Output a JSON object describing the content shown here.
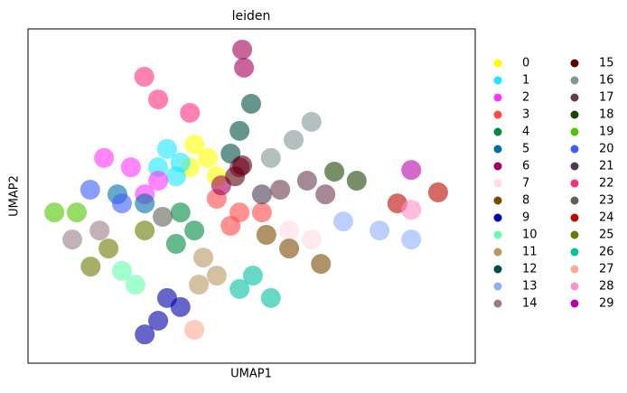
{
  "chart_data": {
    "type": "scatter",
    "title": "leiden",
    "xlabel": "UMAP1",
    "ylabel": "UMAP2",
    "xlim": [
      0,
      100
    ],
    "ylim": [
      0,
      100
    ],
    "legend": "outside-right",
    "series": [
      {
        "name": "0",
        "color": "#FFFF00",
        "x": [
          37.2,
          40.2,
          42.2,
          36.2
        ],
        "y": [
          65.4,
          61.4,
          55.9,
          58.6
        ]
      },
      {
        "name": "1",
        "color": "#1CE6FF",
        "x": [
          31.1,
          34.1,
          29.1,
          33.1
        ],
        "y": [
          64.1,
          60,
          58.6,
          55.9
        ]
      },
      {
        "name": "2",
        "color": "#FF34FF",
        "x": [
          17,
          23,
          29.1,
          26.1
        ],
        "y": [
          61.4,
          58.6,
          54.6,
          50.5
        ]
      },
      {
        "name": "3",
        "color": "#FF4A46",
        "x": [
          42.2,
          47.3,
          52.3,
          45.3
        ],
        "y": [
          49.2,
          45.1,
          45.1,
          41.1
        ]
      },
      {
        "name": "4",
        "color": "#008941",
        "x": [
          34.1,
          37.2,
          33.1
        ],
        "y": [
          45.1,
          39.7,
          35.7
        ]
      },
      {
        "name": "5",
        "color": "#006FA6",
        "x": [
          20,
          26.1
        ],
        "y": [
          50.5,
          47.8
        ]
      },
      {
        "name": "6",
        "color": "#A30059",
        "x": [
          47.9,
          48.3,
          47.3,
          43.2
        ],
        "y": [
          93.8,
          88.4,
          58.6,
          53.2
        ]
      },
      {
        "name": "7",
        "color": "#FFDBE5",
        "x": [
          58.4,
          63.4
        ],
        "y": [
          39.7,
          37
        ]
      },
      {
        "name": "8",
        "color": "#7A4900",
        "x": [
          53.3,
          58.4,
          65.5
        ],
        "y": [
          38.4,
          34.3,
          29.7
        ]
      },
      {
        "name": "9",
        "color": "#0000A6",
        "x": [
          31.1,
          29.1,
          34.1,
          26.1
        ],
        "y": [
          19.5,
          12.7,
          16.8,
          8.6
        ]
      },
      {
        "name": "10",
        "color": "#63FFAC",
        "x": [
          21,
          24
        ],
        "y": [
          27.6,
          23.5
        ]
      },
      {
        "name": "11",
        "color": "#B79762",
        "x": [
          39.2,
          42.2,
          38.2
        ],
        "y": [
          31.6,
          26.2,
          23.5
        ]
      },
      {
        "name": "12",
        "color": "#004D43",
        "x": [
          47.3,
          49.9,
          45.3
        ],
        "y": [
          69.5,
          77.6,
          62.7
        ]
      },
      {
        "name": "13",
        "color": "#8FB0FF",
        "x": [
          70.5,
          78.6,
          85.7
        ],
        "y": [
          42.4,
          39.7,
          37
        ]
      },
      {
        "name": "14",
        "color": "#997D87",
        "x": [
          9.9,
          16
        ],
        "y": [
          37,
          39.7
        ]
      },
      {
        "name": "15",
        "color": "#5A0007",
        "x": [
          47.9,
          46.3
        ],
        "y": [
          59.2,
          55.9
        ]
      },
      {
        "name": "16",
        "color": "#809693",
        "x": [
          54.3,
          59.4,
          63.4
        ],
        "y": [
          61.4,
          66.8,
          72.2
        ]
      },
      {
        "name": "17",
        "color": "#6A3A4C",
        "x": [
          56.4,
          62.4,
          66.5
        ],
        "y": [
          51.9,
          54.6,
          50.5
        ]
      },
      {
        "name": "18",
        "color": "#1B4400",
        "x": [
          68.5,
          73.5
        ],
        "y": [
          57.3,
          54.6
        ]
      },
      {
        "name": "19",
        "color": "#4FC601",
        "x": [
          5.9,
          10.9
        ],
        "y": [
          45.1,
          45.1
        ]
      },
      {
        "name": "20",
        "color": "#3B5DFF",
        "x": [
          13.9,
          21
        ],
        "y": [
          51.9,
          47.8
        ]
      },
      {
        "name": "21",
        "color": "#4A3B53",
        "x": [
          52.3
        ],
        "y": [
          50.5
        ]
      },
      {
        "name": "22",
        "color": "#FF2F80",
        "x": [
          26,
          29.1,
          36.2
        ],
        "y": [
          85.7,
          78.9,
          74.9
        ]
      },
      {
        "name": "23",
        "color": "#61615A",
        "x": [
          30.1
        ],
        "y": [
          43.8
        ]
      },
      {
        "name": "24",
        "color": "#BA0900",
        "x": [
          82.6,
          91.7
        ],
        "y": [
          47.8,
          51.1
        ]
      },
      {
        "name": "25",
        "color": "#6B7900",
        "x": [
          18,
          26.1,
          14
        ],
        "y": [
          34.3,
          39.7,
          28.9
        ]
      },
      {
        "name": "26",
        "color": "#00C2A0",
        "x": [
          50.3,
          54.3,
          47.3
        ],
        "y": [
          26.2,
          19.5,
          22.2
        ]
      },
      {
        "name": "27",
        "color": "#FFAA92",
        "x": [
          37.2
        ],
        "y": [
          10
        ]
      },
      {
        "name": "28",
        "color": "#FF90C9",
        "x": [
          85.7
        ],
        "y": [
          45.9
        ]
      },
      {
        "name": "29",
        "color": "#B903AA",
        "x": [
          85.7
        ],
        "y": [
          57.8
        ]
      }
    ]
  }
}
